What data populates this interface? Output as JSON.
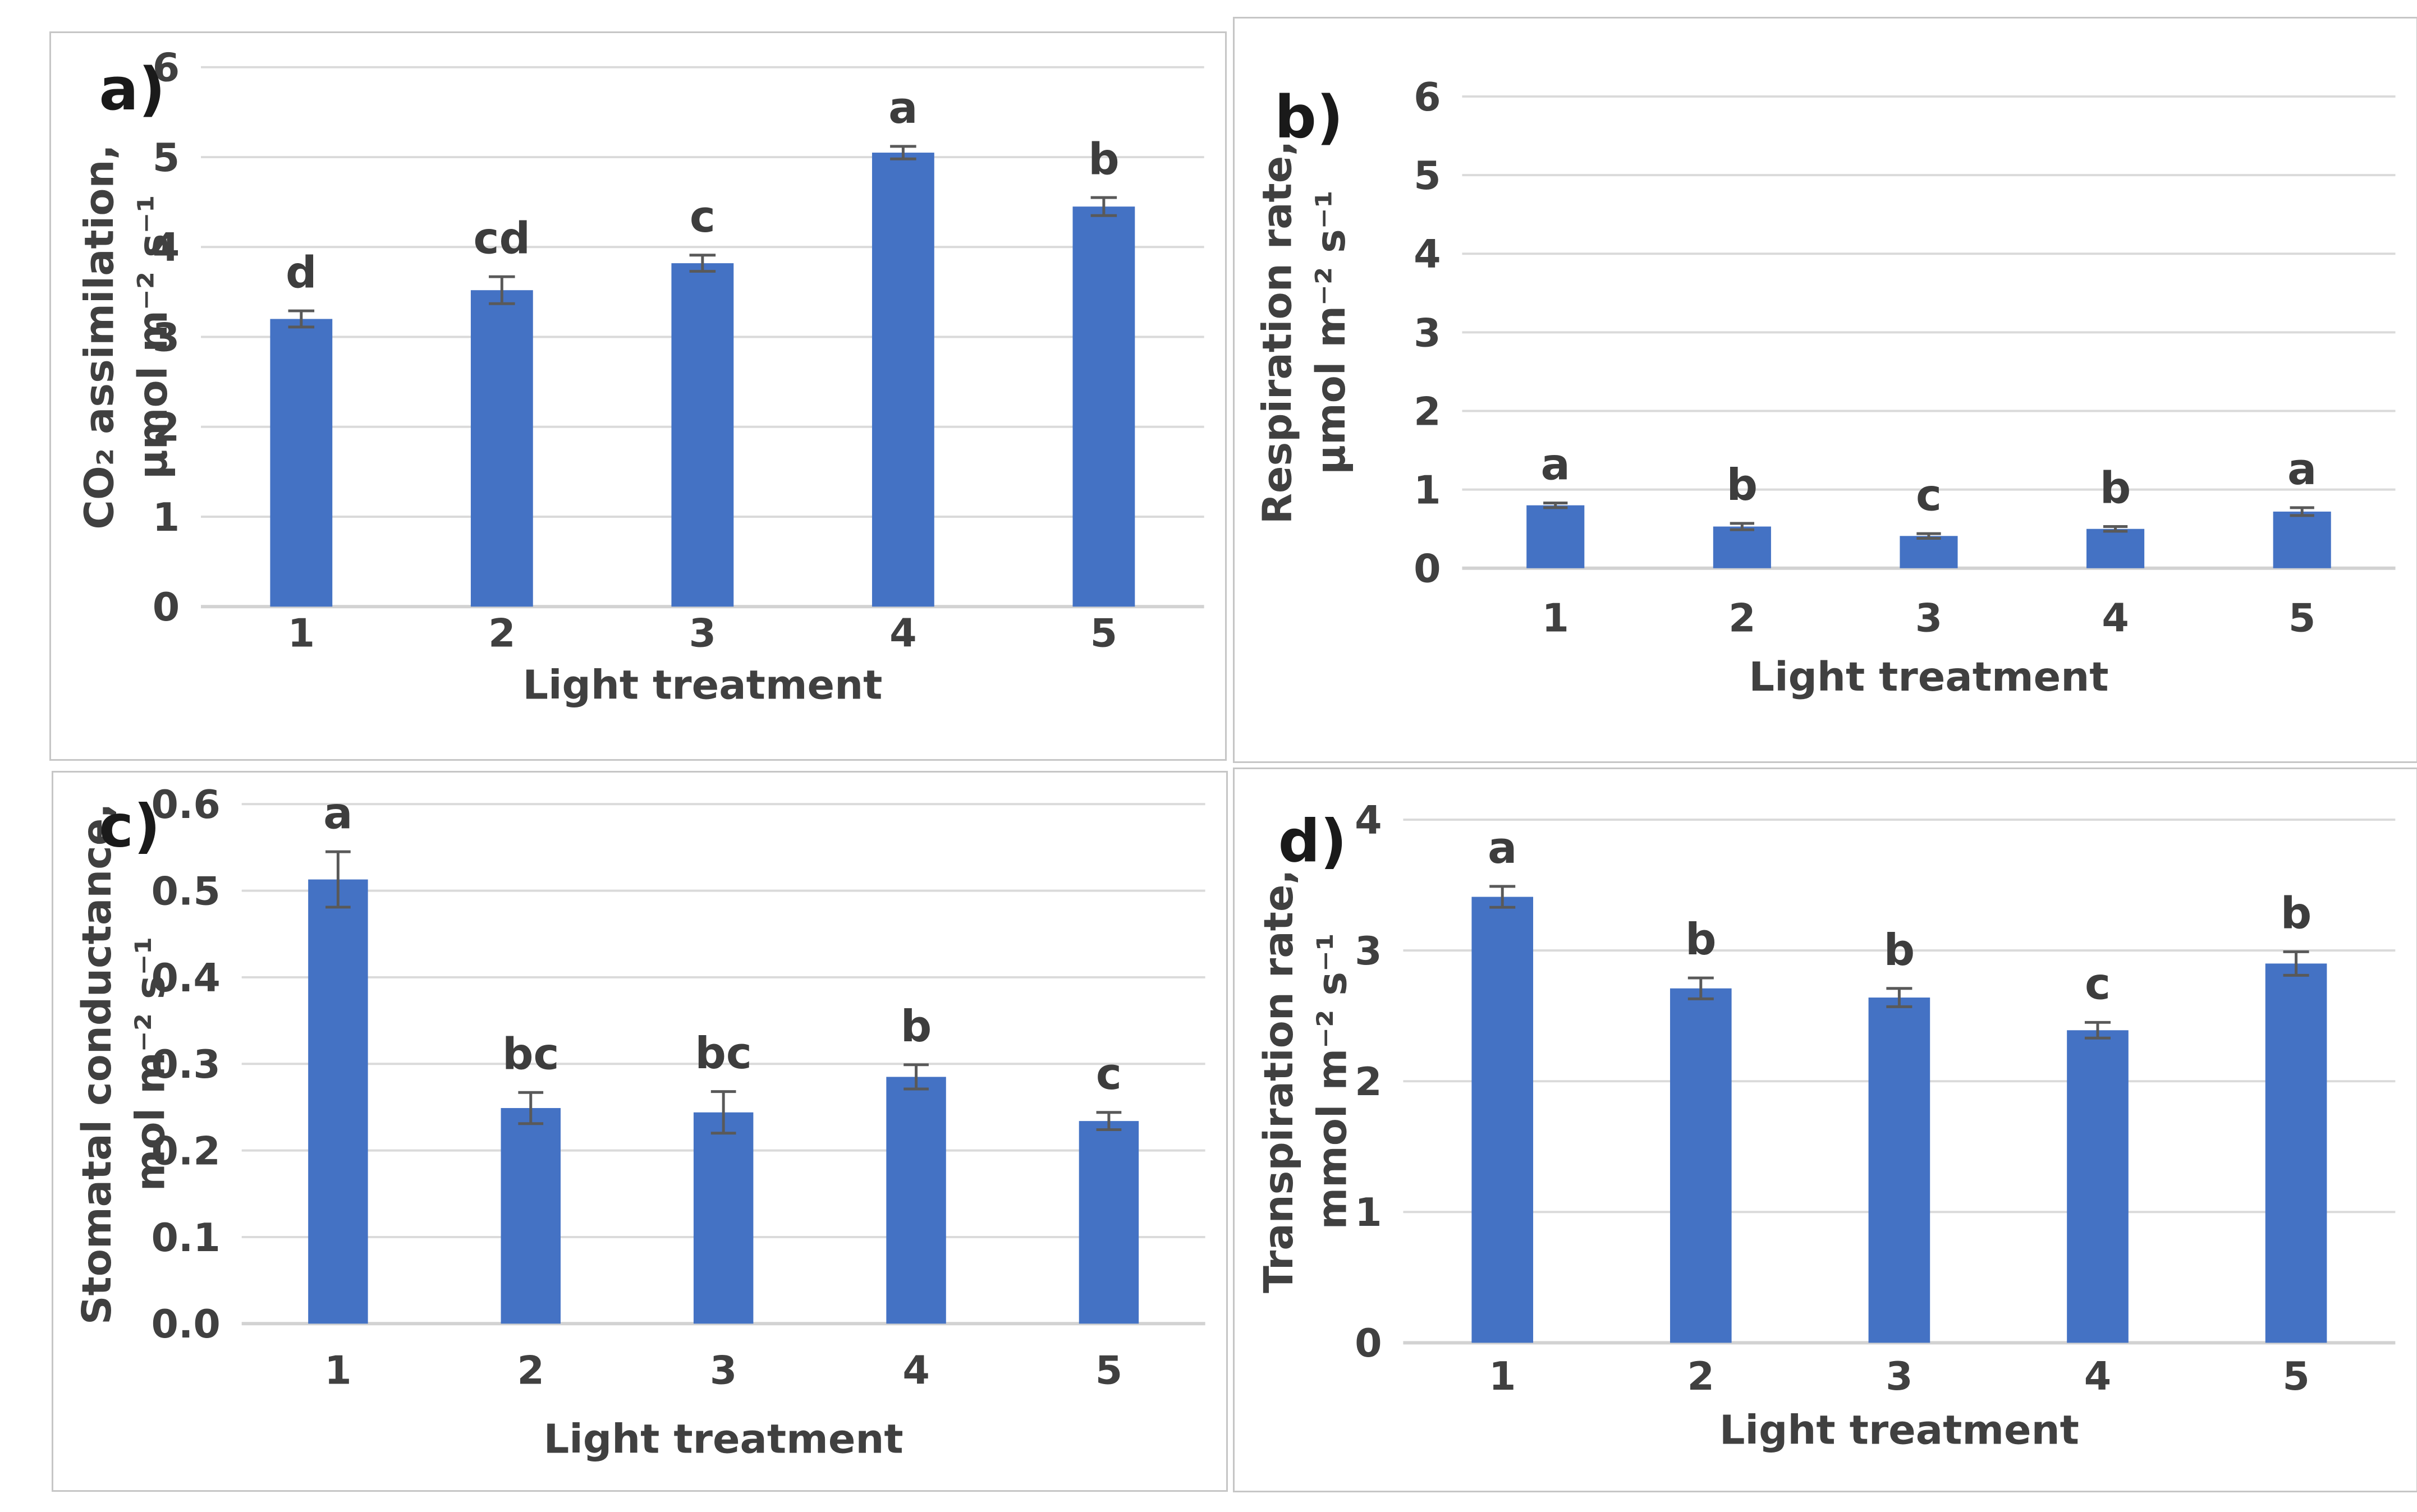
{
  "figure": {
    "description": "Four-panel bar chart figure of leaf gas-exchange responses to light treatments",
    "panels_order": [
      "a",
      "b",
      "c",
      "d"
    ]
  },
  "colors": {
    "bar": "#4472C4",
    "gridline": "#DADADA",
    "baseline": "#D2D2D2",
    "error_bar": "#595959",
    "label_text": "#404040",
    "sig_letter_text": "#3D3D3D",
    "panel_letter_text": "#1A1A1A",
    "panel_border": "#C6C6C6",
    "background": "#FFFFFF"
  },
  "chart_data": [
    {
      "type": "bar",
      "panel_label": "a)",
      "title": "",
      "categories": [
        "1",
        "2",
        "3",
        "4",
        "5"
      ],
      "values": [
        3.2,
        3.52,
        3.82,
        5.05,
        4.45
      ],
      "errors": [
        0.09,
        0.15,
        0.09,
        0.07,
        0.1
      ],
      "sig_letters": [
        "d",
        "cd",
        "c",
        "a",
        "b"
      ],
      "ylabel_lines": [
        "CO₂ assimilation,",
        "μmol m⁻² s⁻¹"
      ],
      "xlabel": "Light treatment",
      "ylim": [
        0,
        6
      ],
      "ytick_step": 1,
      "ytick_decimals": 0,
      "grid": true,
      "legend": "none"
    },
    {
      "type": "bar",
      "panel_label": "b)",
      "title": "",
      "categories": [
        "1",
        "2",
        "3",
        "4",
        "5"
      ],
      "values": [
        0.8,
        0.53,
        0.41,
        0.5,
        0.72
      ],
      "errors": [
        0.03,
        0.04,
        0.03,
        0.03,
        0.05
      ],
      "sig_letters": [
        "a",
        "b",
        "c",
        "b",
        "a"
      ],
      "ylabel_lines": [
        "Respiration rate,",
        "μmol m⁻² s⁻¹"
      ],
      "xlabel": "Light treatment",
      "ylim": [
        0,
        6
      ],
      "ytick_step": 1,
      "ytick_decimals": 0,
      "grid": true,
      "legend": "none"
    },
    {
      "type": "bar",
      "panel_label": "c)",
      "title": "",
      "categories": [
        "1",
        "2",
        "3",
        "4",
        "5"
      ],
      "values": [
        0.513,
        0.249,
        0.244,
        0.285,
        0.234
      ],
      "errors": [
        0.032,
        0.018,
        0.024,
        0.014,
        0.01
      ],
      "sig_letters": [
        "a",
        "bc",
        "bc",
        "b",
        "c"
      ],
      "ylabel_lines": [
        "Stomatal conductance,",
        "mol m⁻² s⁻¹"
      ],
      "xlabel": "Light treatment",
      "ylim": [
        0,
        0.6
      ],
      "ytick_step": 0.1,
      "ytick_decimals": 1,
      "grid": true,
      "legend": "none"
    },
    {
      "type": "bar",
      "panel_label": "d)",
      "title": "",
      "categories": [
        "1",
        "2",
        "3",
        "4",
        "5"
      ],
      "values": [
        3.41,
        2.71,
        2.64,
        2.39,
        2.9
      ],
      "errors": [
        0.08,
        0.08,
        0.07,
        0.06,
        0.09
      ],
      "sig_letters": [
        "a",
        "b",
        "b",
        "c",
        "b"
      ],
      "ylabel_lines": [
        "Transpiration rate,",
        "mmol m⁻² s⁻¹"
      ],
      "xlabel": "Light treatment",
      "ylim": [
        0,
        4
      ],
      "ytick_step": 1,
      "ytick_decimals": 0,
      "grid": true,
      "legend": "none"
    }
  ]
}
